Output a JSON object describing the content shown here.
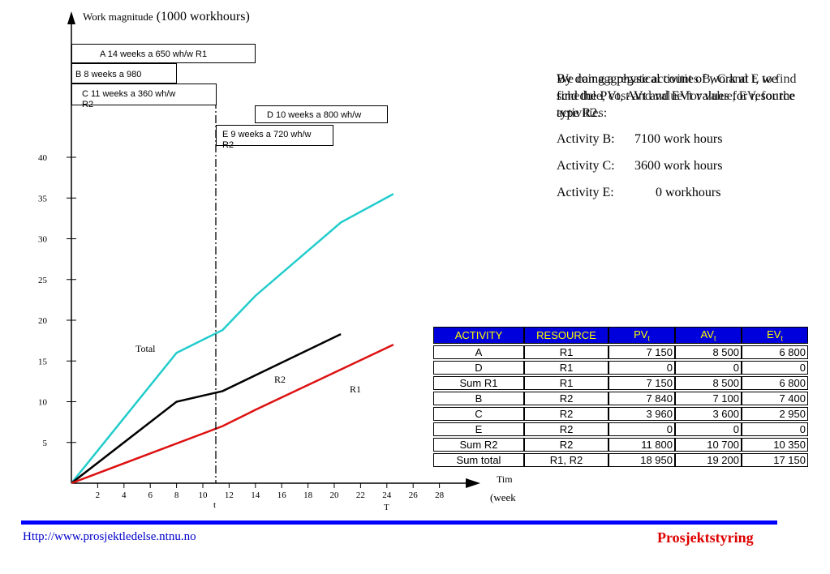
{
  "chart_data": {
    "type": "line",
    "y_title_prefix": "Work magnitude",
    "y_title_unit": "(1000 workhours)",
    "x_title": "Tim",
    "x_title_unit": "(week",
    "x_ticks": [
      "2",
      "4",
      "6",
      "8",
      "10",
      "12",
      "14",
      "16",
      "18",
      "20",
      "22",
      "24",
      "26",
      "28"
    ],
    "y_ticks": [
      "5",
      "10",
      "15",
      "20",
      "25",
      "30",
      "35",
      "40"
    ],
    "x_markers": [
      "t",
      "T"
    ],
    "series": [
      {
        "name": "Total",
        "color": "#22cccc",
        "x": [
          0,
          8,
          11.5,
          14,
          20.5,
          24.5
        ],
        "y": [
          0,
          16,
          18.8,
          23,
          32,
          35.5
        ]
      },
      {
        "name": "R2",
        "color": "#000000",
        "x": [
          0,
          8,
          11.5,
          20.5
        ],
        "y": [
          0,
          10,
          11.3,
          18.3
        ]
      },
      {
        "name": "R1",
        "color": "#dd1111",
        "x": [
          0,
          11.5,
          14,
          24.5
        ],
        "y": [
          0,
          7,
          9,
          17
        ]
      }
    ]
  },
  "activity_bars": [
    {
      "id": "A",
      "label": "A 14 weeks a 650 wh/w R1"
    },
    {
      "id": "B",
      "label": "B 8 weeks a 980"
    },
    {
      "id": "C",
      "label": "C 11 weeks a 360 wh/w",
      "sub": "R2"
    },
    {
      "id": "D",
      "label": "D 10 weeks a 800 wh/w"
    },
    {
      "id": "E",
      "label": "E 9 weeks a 720 wh/w",
      "sub": "R2"
    }
  ],
  "text_overlay_1": "By doing a physical count of work at t, we find the PVt, AVt and EVt values for resource type R2.",
  "text_overlay_2": "We can aggregate activities B, C and E to find schedule, cost and value for value, EV, for the activities:",
  "activities_list": [
    {
      "label": "Activity B:",
      "value": "7100 work hours"
    },
    {
      "label": "Activity C:",
      "value": "3600 work hours"
    },
    {
      "label": "Activity E:",
      "value": "0 workhours"
    }
  ],
  "table": {
    "headers": [
      "ACTIVITY",
      "RESOURCE",
      "PV",
      "AV",
      "EV"
    ],
    "header_sub": "t",
    "rows": [
      [
        "A",
        "R1",
        "7 150",
        "8 500",
        "6 800"
      ],
      [
        "D",
        "R1",
        "0",
        "0",
        "0"
      ],
      [
        "Sum R1",
        "R1",
        "7 150",
        "8 500",
        "6 800"
      ],
      [
        "B",
        "R2",
        "7 840",
        "7 100",
        "7 400"
      ],
      [
        "C",
        "R2",
        "3 960",
        "3 600",
        "2 950"
      ],
      [
        "E",
        "R2",
        "0",
        "0",
        "0"
      ],
      [
        "Sum R2",
        "R2",
        "11 800",
        "10 700",
        "10 350"
      ],
      [
        "Sum total",
        "R1, R2",
        "18 950",
        "19 200",
        "17 150"
      ]
    ]
  },
  "footer": {
    "url": "Http://www.prosjektledelse.ntnu.no",
    "brand": "Prosjektstyring"
  }
}
